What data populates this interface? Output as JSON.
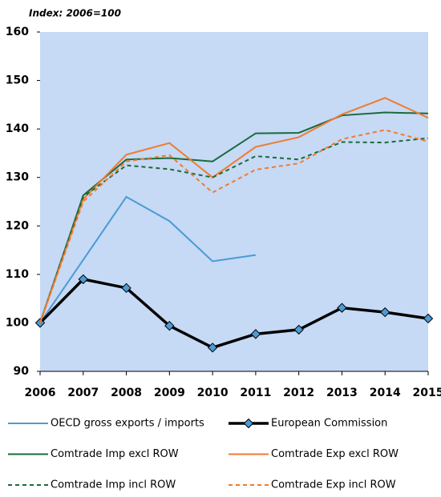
{
  "chart_data": {
    "type": "line",
    "subtitle": "Index: 2006=100",
    "categories": [
      "2006",
      "2007",
      "2008",
      "2009",
      "2010",
      "2011",
      "2012",
      "2013",
      "2014",
      "2015"
    ],
    "ylim": [
      90,
      160
    ],
    "yticks": [
      90,
      100,
      110,
      120,
      130,
      140,
      150,
      160
    ],
    "background": "#c6d9f5",
    "series": [
      {
        "name": "OECD gross exports / imports",
        "color": "#4a9bd6",
        "width": 2,
        "dash": false,
        "marker": null,
        "values": [
          100,
          113,
          126,
          121,
          112.7,
          114,
          null,
          null,
          null,
          null
        ]
      },
      {
        "name": "European Commission",
        "color": "#000000",
        "width": 3.5,
        "dash": false,
        "marker": "diamond",
        "marker_color": "#4a9bd6",
        "values": [
          100,
          109,
          107.2,
          99.4,
          94.9,
          97.7,
          98.6,
          103.1,
          102.2,
          100.9
        ]
      },
      {
        "name": "Comtrade Imp excl ROW",
        "color": "#1a6b3a",
        "width": 2,
        "dash": false,
        "marker": null,
        "values": [
          100,
          126.3,
          133.7,
          134,
          133.3,
          139.1,
          139.2,
          142.8,
          143.4,
          143.2
        ]
      },
      {
        "name": "Comtrade Exp excl ROW",
        "color": "#f07b2e",
        "width": 2,
        "dash": false,
        "marker": null,
        "values": [
          100,
          125.5,
          134.7,
          137.1,
          130,
          136.3,
          138.3,
          143,
          146.4,
          142.3
        ]
      },
      {
        "name": "Comtrade Imp incl ROW",
        "color": "#1a6b3a",
        "width": 2,
        "dash": true,
        "marker": null,
        "values": [
          100,
          126,
          132.5,
          131.7,
          130,
          134.4,
          133.7,
          137.3,
          137.2,
          138.1
        ]
      },
      {
        "name": "Comtrade Exp incl ROW",
        "color": "#f07b2e",
        "width": 2,
        "dash": true,
        "marker": null,
        "values": [
          100,
          125,
          133.3,
          134.6,
          126.9,
          131.6,
          132.9,
          137.9,
          139.8,
          137.4
        ]
      }
    ]
  }
}
